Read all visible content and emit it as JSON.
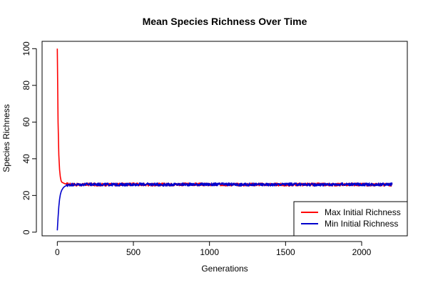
{
  "chart_data": {
    "type": "line",
    "title": "Mean Species Richness Over Time",
    "xlabel": "Generations",
    "ylabel": "Species Richness",
    "xlim": [
      -100,
      2300
    ],
    "ylim": [
      -2,
      104
    ],
    "xticks": [
      0,
      500,
      1000,
      1500,
      2000
    ],
    "yticks": [
      0,
      20,
      40,
      60,
      80,
      100
    ],
    "grid": false,
    "legend_position": "bottom-right",
    "series": [
      {
        "name": "Max Initial Richness",
        "color": "#ff0000",
        "x": [
          0,
          5,
          10,
          15,
          20,
          25,
          30,
          40,
          50,
          60,
          70,
          80,
          100,
          150,
          200,
          300,
          400,
          500,
          600,
          700,
          800,
          900,
          1000,
          1100,
          1200,
          1300,
          1400,
          1500,
          1600,
          1700,
          1800,
          1900,
          2000,
          2100,
          2200
        ],
        "values": [
          100,
          60,
          42,
          34,
          30,
          28,
          27.2,
          26.8,
          26.4,
          26.2,
          26.1,
          26,
          26,
          25.8,
          26,
          25.9,
          26,
          26.1,
          25.9,
          26,
          26,
          26.1,
          25.9,
          26,
          25.9,
          26,
          26,
          25.8,
          26,
          26,
          25.9,
          26,
          26,
          25.8,
          25.9
        ]
      },
      {
        "name": "Min Initial Richness",
        "color": "#0000cc",
        "x": [
          0,
          5,
          10,
          15,
          20,
          25,
          30,
          40,
          50,
          60,
          70,
          80,
          100,
          150,
          200,
          300,
          400,
          500,
          600,
          700,
          800,
          900,
          1000,
          1100,
          1200,
          1300,
          1400,
          1500,
          1600,
          1700,
          1800,
          1900,
          2000,
          2100,
          2200
        ],
        "values": [
          1,
          8,
          14,
          18,
          20.5,
          22,
          23,
          24.3,
          25,
          25.4,
          25.6,
          25.8,
          26,
          25.9,
          26.1,
          26,
          25.9,
          26,
          26.1,
          25.9,
          26,
          26,
          26,
          26.1,
          25.9,
          26,
          25.9,
          26.1,
          26,
          25.9,
          26,
          26.1,
          26,
          26,
          26.1
        ]
      }
    ]
  }
}
